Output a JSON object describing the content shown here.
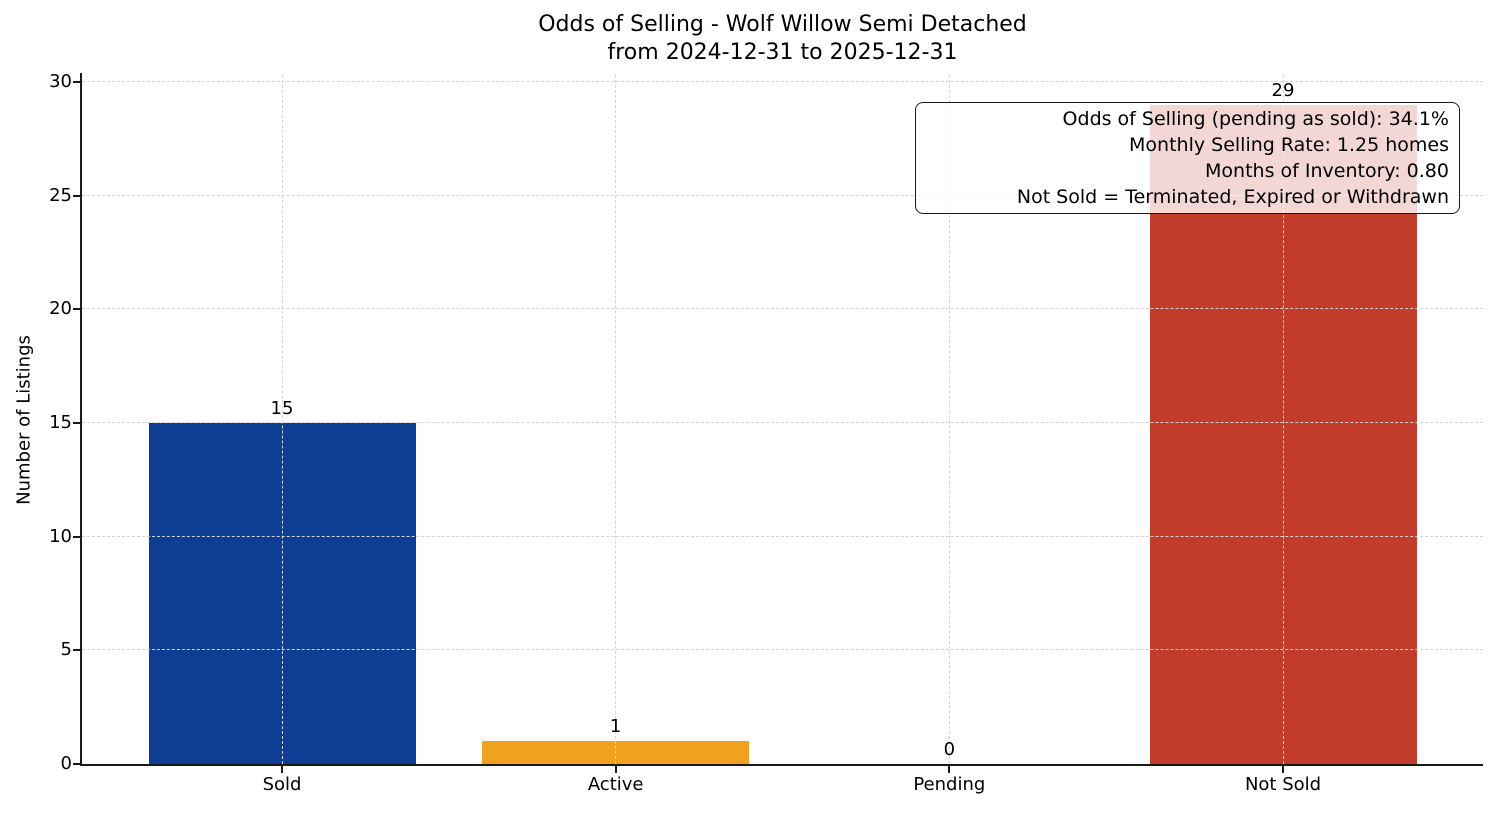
{
  "chart_data": {
    "type": "bar",
    "title": "Odds of Selling - Wolf Willow Semi Detached",
    "subtitle": "from 2024-12-31 to 2025-12-31",
    "xlabel": "",
    "ylabel": "Number of Listings",
    "categories": [
      "Sold",
      "Active",
      "Pending",
      "Not Sold"
    ],
    "values": [
      15,
      1,
      0,
      29
    ],
    "bar_value_labels": [
      "15",
      "1",
      "0",
      "29"
    ],
    "bar_colors": [
      "#0e3d94",
      "#f0a11e",
      "#808080",
      "#c23b2b"
    ],
    "yticks": [
      0,
      5,
      10,
      15,
      20,
      25,
      30
    ],
    "ylim": [
      0,
      30.3
    ],
    "grid": true,
    "grid_linestyle": "dashed",
    "legend_position": "none",
    "annotation": {
      "lines": [
        "Odds of Selling (pending as sold): 34.1%",
        "Monthly Selling Rate: 1.25 homes",
        "Months of Inventory: 0.80",
        "Not Sold = Terminated, Expired or Withdrawn"
      ]
    }
  },
  "style": {
    "bar_blue": "#0e3d94",
    "bar_orange": "#f0a11e",
    "bar_red": "#c23b2b",
    "grid_color": "#d4d4d4",
    "spine_color": "#1a1a1a",
    "text_color": "#000000",
    "annotation_background": "rgba(255,255,255,0.8)",
    "background": "#ffffff"
  }
}
